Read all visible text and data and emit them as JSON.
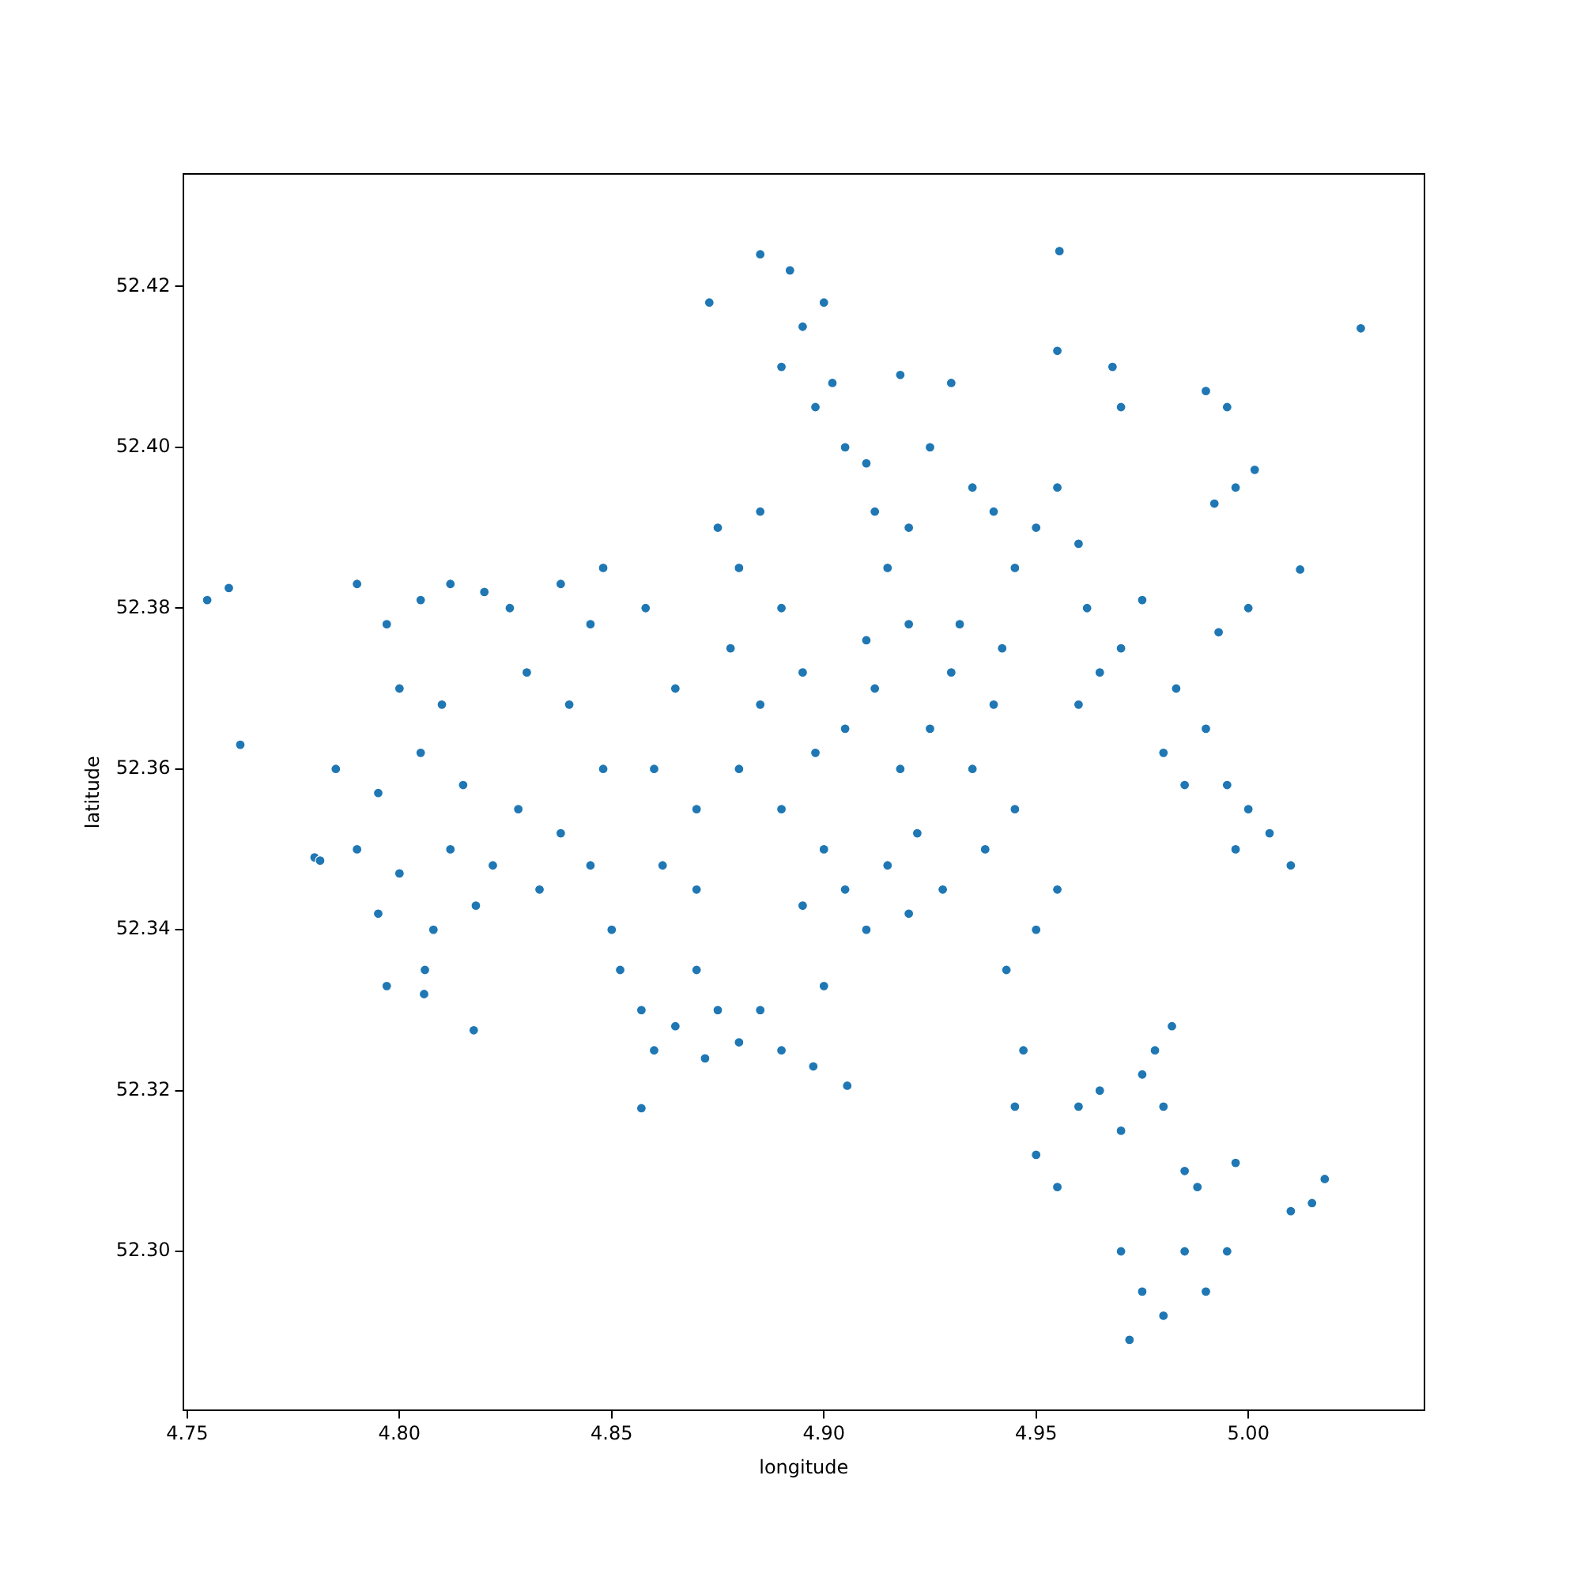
{
  "chart_data": {
    "type": "scatter",
    "xlabel": "longitude",
    "ylabel": "latitude",
    "xlim": [
      4.749,
      5.0415
    ],
    "ylim": [
      52.2802,
      52.434
    ],
    "xticks": [
      4.75,
      {
        "value": 4.8,
        "label": "4.80"
      },
      4.85,
      {
        "value": 4.9,
        "label": "4.90"
      },
      4.95,
      {
        "value": 5.0,
        "label": "5.00"
      }
    ],
    "yticks": [
      {
        "value": 52.3,
        "label": "52.30"
      },
      52.32,
      52.34,
      52.36,
      52.38,
      {
        "value": 52.4,
        "label": "52.40"
      },
      52.42
    ],
    "marker": "circle",
    "grid": false,
    "legend": false,
    "series": [
      {
        "color": "#1f77b4",
        "x": [
          4.79,
          4.797,
          4.805,
          4.812,
          4.82,
          4.826,
          4.8,
          4.81,
          4.785,
          4.795,
          4.805,
          4.815,
          4.79,
          4.8,
          4.812,
          4.822,
          4.78,
          4.795,
          4.808,
          4.818,
          4.797,
          4.806,
          4.83,
          4.828,
          4.833,
          4.838,
          4.845,
          4.84,
          4.848,
          4.838,
          4.845,
          4.85,
          4.852,
          4.848,
          4.858,
          4.865,
          4.86,
          4.87,
          4.862,
          4.87,
          4.875,
          4.88,
          4.885,
          4.878,
          4.885,
          4.89,
          4.895,
          4.88,
          4.89,
          4.898,
          4.9,
          4.905,
          4.895,
          4.91,
          4.905,
          4.912,
          4.918,
          4.922,
          4.915,
          4.925,
          4.93,
          4.935,
          4.94,
          4.945,
          4.938,
          4.942,
          4.928,
          4.92,
          4.9,
          4.91,
          4.92,
          4.932,
          4.857,
          4.86,
          4.865,
          4.87,
          4.875,
          4.88,
          4.885,
          4.89,
          4.872,
          4.873,
          4.885,
          4.892,
          4.895,
          4.9,
          4.89,
          4.898,
          4.905,
          4.902,
          4.91,
          4.912,
          4.915,
          4.92,
          4.925,
          4.93,
          4.935,
          4.94,
          4.945,
          4.95,
          4.955,
          4.96,
          4.962,
          4.918,
          4.955,
          4.968,
          4.97,
          4.965,
          4.97,
          4.96,
          4.975,
          4.983,
          4.98,
          4.985,
          4.99,
          4.995,
          5.0,
          5.005,
          5.01,
          4.997,
          4.992,
          4.997,
          4.99,
          4.995,
          4.993,
          5.0,
          4.943,
          4.95,
          4.955,
          4.947,
          4.945,
          4.95,
          4.955,
          4.96,
          4.965,
          4.97,
          4.975,
          4.978,
          4.98,
          4.985,
          4.982,
          4.97,
          4.975,
          4.98,
          4.985,
          4.99,
          4.995,
          4.972,
          4.988,
          4.997,
          5.01,
          5.015,
          5.018,
          4.7547,
          4.7598,
          4.7625,
          4.7813,
          4.8058,
          4.8175,
          4.857,
          4.8975,
          4.9055,
          4.9555,
          5.0265,
          5.0122,
          5.0015
        ],
        "values": [
          52.383,
          52.378,
          52.381,
          52.383,
          52.382,
          52.38,
          52.37,
          52.368,
          52.36,
          52.357,
          52.362,
          52.358,
          52.35,
          52.347,
          52.35,
          52.348,
          52.349,
          52.342,
          52.34,
          52.343,
          52.333,
          52.335,
          52.372,
          52.355,
          52.345,
          52.383,
          52.378,
          52.368,
          52.36,
          52.352,
          52.348,
          52.34,
          52.335,
          52.385,
          52.38,
          52.37,
          52.36,
          52.355,
          52.348,
          52.345,
          52.39,
          52.385,
          52.392,
          52.375,
          52.368,
          52.38,
          52.372,
          52.36,
          52.355,
          52.362,
          52.35,
          52.345,
          52.343,
          52.34,
          52.365,
          52.37,
          52.36,
          52.352,
          52.348,
          52.365,
          52.372,
          52.36,
          52.368,
          52.355,
          52.35,
          52.375,
          52.345,
          52.342,
          52.333,
          52.376,
          52.378,
          52.378,
          52.33,
          52.325,
          52.328,
          52.335,
          52.33,
          52.326,
          52.33,
          52.325,
          52.324,
          52.418,
          52.424,
          52.422,
          52.415,
          52.418,
          52.41,
          52.405,
          52.4,
          52.408,
          52.398,
          52.392,
          52.385,
          52.39,
          52.4,
          52.408,
          52.395,
          52.392,
          52.385,
          52.39,
          52.395,
          52.388,
          52.38,
          52.409,
          52.412,
          52.41,
          52.405,
          52.372,
          52.375,
          52.368,
          52.381,
          52.37,
          52.362,
          52.358,
          52.365,
          52.358,
          52.355,
          52.352,
          52.348,
          52.35,
          52.393,
          52.395,
          52.407,
          52.405,
          52.377,
          52.38,
          52.335,
          52.34,
          52.345,
          52.325,
          52.318,
          52.312,
          52.308,
          52.318,
          52.32,
          52.315,
          52.322,
          52.325,
          52.318,
          52.31,
          52.328,
          52.3,
          52.295,
          52.292,
          52.3,
          52.295,
          52.3,
          52.289,
          52.308,
          52.311,
          52.305,
          52.306,
          52.309,
          52.381,
          52.3825,
          52.363,
          52.3486,
          52.332,
          52.3275,
          52.3178,
          52.323,
          52.3206,
          52.4244,
          52.4148,
          52.3848,
          52.3972
        ]
      }
    ]
  }
}
